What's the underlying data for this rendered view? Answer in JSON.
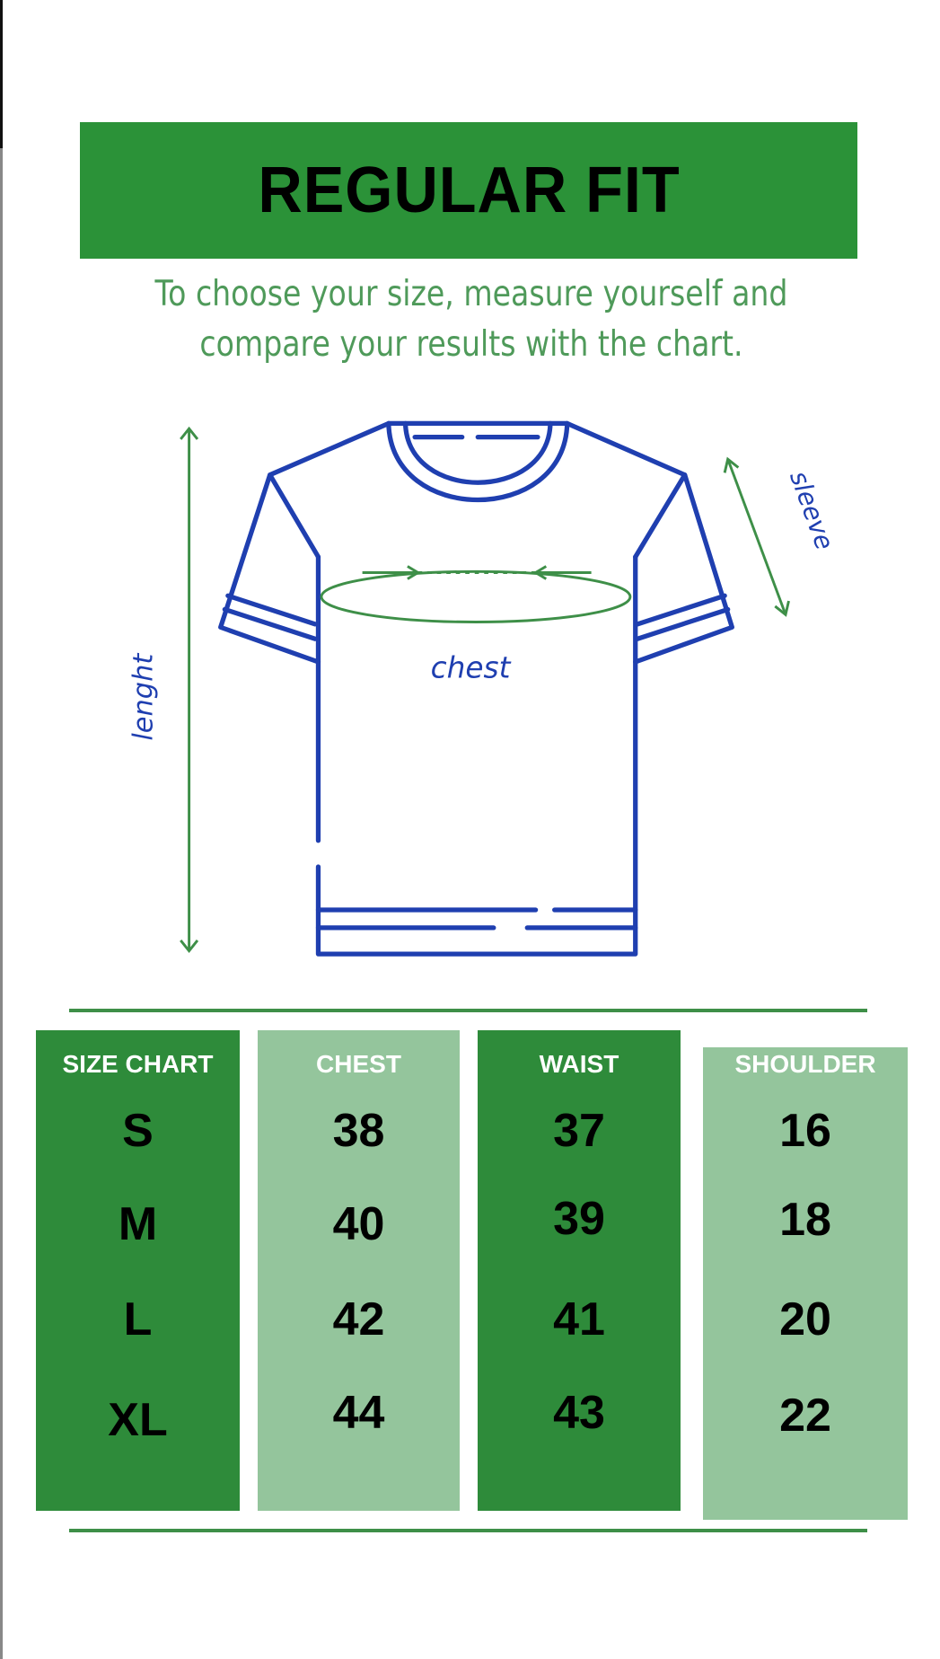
{
  "title": "REGULAR FIT",
  "subtitle": [
    "To choose your size, measure yourself and",
    "compare your results with the chart."
  ],
  "diagram_labels": {
    "length": "lenght",
    "sleeve": "sleeve",
    "chest": "chest"
  },
  "colors": {
    "dark_green": "#2e8b3a",
    "light_green": "#94c59c",
    "banner_green": "#2b9238",
    "shirt_outline": "#1f3fb0",
    "measure_green": "#3e8f48"
  },
  "chart_data": {
    "type": "table",
    "columns": [
      "SIZE CHART",
      "CHEST",
      "WAIST",
      "SHOULDER"
    ],
    "rows": [
      [
        "S",
        "38",
        "37",
        "16"
      ],
      [
        "M",
        "40",
        "39",
        "18"
      ],
      [
        "L",
        "42",
        "41",
        "20"
      ],
      [
        "XL",
        "44",
        "43",
        "22"
      ]
    ]
  }
}
